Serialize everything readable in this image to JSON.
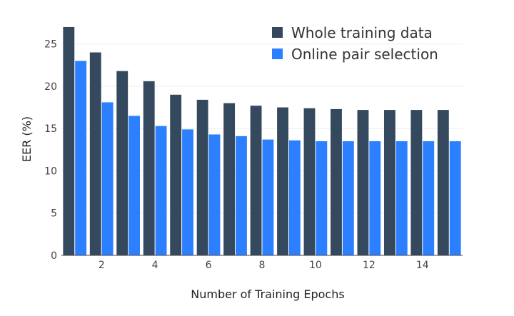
{
  "chart_data": {
    "type": "bar",
    "x": [
      1,
      2,
      3,
      4,
      5,
      6,
      7,
      8,
      9,
      10,
      11,
      12,
      13,
      14,
      15
    ],
    "series": [
      {
        "name": "Whole training data",
        "color": "#34495e",
        "values": [
          27.0,
          24.0,
          21.8,
          20.6,
          19.0,
          18.4,
          18.0,
          17.7,
          17.5,
          17.4,
          17.3,
          17.2,
          17.2,
          17.2,
          17.2
        ]
      },
      {
        "name": "Online pair selection",
        "color": "#2c7fff",
        "values": [
          23.0,
          18.1,
          16.5,
          15.3,
          14.9,
          14.3,
          14.1,
          13.7,
          13.6,
          13.5,
          13.5,
          13.5,
          13.5,
          13.5,
          13.5
        ]
      }
    ],
    "xticks": [
      2,
      4,
      6,
      8,
      10,
      12,
      14
    ],
    "yticks": [
      0,
      5,
      10,
      15,
      20,
      25
    ],
    "xlim": [
      0.5,
      15.5
    ],
    "ylim": [
      0,
      27.5
    ],
    "xlabel": "Number of Training Epochs",
    "ylabel": "EER (%)",
    "grid": true,
    "legend_position": "top-right"
  }
}
